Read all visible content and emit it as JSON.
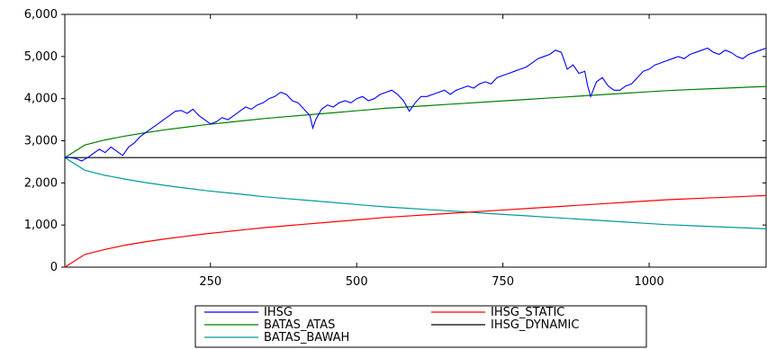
{
  "chart_data": {
    "type": "line",
    "title": "",
    "xlabel": "",
    "ylabel": "",
    "xlim": [
      1,
      1200
    ],
    "ylim": [
      0,
      6000
    ],
    "x_ticks": [
      250,
      500,
      750,
      1000
    ],
    "x_tick_labels": [
      "250",
      "500",
      "750",
      "1000"
    ],
    "y_ticks": [
      0,
      1000,
      2000,
      3000,
      4000,
      5000,
      6000
    ],
    "y_tick_labels": [
      "0",
      "1,000",
      "2,000",
      "3,000",
      "4,000",
      "5,000",
      "6,000"
    ],
    "grid": false,
    "legend_position": "bottom",
    "series": [
      {
        "name": "IHSG",
        "color": "#0000ff",
        "x": [
          1,
          10,
          20,
          30,
          40,
          50,
          60,
          70,
          80,
          90,
          100,
          110,
          120,
          130,
          140,
          150,
          160,
          170,
          180,
          190,
          200,
          210,
          220,
          230,
          240,
          250,
          260,
          270,
          280,
          290,
          300,
          310,
          320,
          330,
          340,
          350,
          360,
          370,
          380,
          390,
          400,
          410,
          420,
          425,
          430,
          440,
          450,
          460,
          470,
          480,
          490,
          500,
          510,
          520,
          530,
          540,
          550,
          560,
          570,
          580,
          590,
          600,
          610,
          620,
          630,
          640,
          650,
          660,
          670,
          680,
          690,
          700,
          710,
          720,
          730,
          740,
          750,
          760,
          770,
          780,
          790,
          800,
          810,
          820,
          830,
          840,
          850,
          860,
          870,
          880,
          890,
          895,
          900,
          910,
          920,
          930,
          940,
          950,
          960,
          970,
          980,
          990,
          1000,
          1010,
          1020,
          1030,
          1040,
          1050,
          1060,
          1070,
          1080,
          1090,
          1100,
          1110,
          1120,
          1130,
          1140,
          1150,
          1160,
          1170,
          1180,
          1190,
          1200
        ],
        "values": [
          2620,
          2600,
          2580,
          2520,
          2600,
          2700,
          2800,
          2720,
          2850,
          2750,
          2650,
          2850,
          2950,
          3100,
          3200,
          3300,
          3400,
          3500,
          3600,
          3700,
          3720,
          3650,
          3750,
          3600,
          3500,
          3400,
          3450,
          3550,
          3500,
          3600,
          3700,
          3800,
          3750,
          3850,
          3900,
          4000,
          4050,
          4150,
          4100,
          3950,
          3900,
          3750,
          3600,
          3300,
          3500,
          3750,
          3850,
          3800,
          3900,
          3950,
          3900,
          4000,
          4050,
          3950,
          4000,
          4100,
          4150,
          4200,
          4100,
          3950,
          3700,
          3900,
          4050,
          4050,
          4100,
          4150,
          4200,
          4100,
          4200,
          4250,
          4300,
          4250,
          4350,
          4400,
          4350,
          4500,
          4550,
          4600,
          4650,
          4700,
          4750,
          4850,
          4950,
          5000,
          5050,
          5150,
          5100,
          4700,
          4800,
          4600,
          4650,
          4300,
          4050,
          4400,
          4500,
          4300,
          4200,
          4200,
          4300,
          4350,
          4500,
          4650,
          4700,
          4800,
          4850,
          4900,
          4950,
          5000,
          4950,
          5050,
          5100,
          5150,
          5200,
          5100,
          5050,
          5150,
          5100,
          5000,
          4950,
          5050,
          5100,
          5150,
          5200
        ]
      },
      {
        "name": "IHSG_STATIC",
        "color": "#ff0000",
        "formula": "static_lower_1_to_1200",
        "x_step": 10,
        "values": [
          0,
          300,
          420,
          520,
          600,
          670,
          730,
          790,
          840,
          890,
          940,
          980,
          1020,
          1060,
          1100,
          1140,
          1180,
          1210,
          1240,
          1270,
          1300,
          1330,
          1360,
          1390,
          1420,
          1450,
          1480,
          1510,
          1540,
          1570,
          1600,
          1620,
          1640,
          1660,
          1680,
          1700
        ]
      },
      {
        "name": "BATAS_ATAS",
        "color": "#008000",
        "x_step": 10,
        "values": [
          2600,
          2900,
          3020,
          3110,
          3190,
          3260,
          3320,
          3380,
          3430,
          3480,
          3530,
          3570,
          3610,
          3650,
          3690,
          3730,
          3770,
          3800,
          3830,
          3860,
          3890,
          3920,
          3950,
          3980,
          4010,
          4040,
          4070,
          4100,
          4130,
          4160,
          4190,
          4210,
          4230,
          4250,
          4270,
          4290
        ]
      },
      {
        "name": "IHSG_DYNAMIC",
        "color": "#000000",
        "constant": 2600
      },
      {
        "name": "BATAS_BAWAH",
        "color": "#009a9a",
        "x_step": 10,
        "values": [
          2600,
          2300,
          2180,
          2090,
          2010,
          1940,
          1880,
          1820,
          1770,
          1720,
          1670,
          1630,
          1590,
          1550,
          1510,
          1470,
          1430,
          1400,
          1370,
          1340,
          1310,
          1280,
          1250,
          1220,
          1190,
          1160,
          1130,
          1100,
          1070,
          1040,
          1010,
          990,
          970,
          950,
          930,
          910
        ]
      }
    ]
  },
  "legend": {
    "entries": [
      {
        "name": "IHSG",
        "color": "#0000ff"
      },
      {
        "name": "IHSG_STATIC",
        "color": "#ff0000"
      },
      {
        "name": "BATAS_ATAS",
        "color": "#008000"
      },
      {
        "name": "IHSG_DYNAMIC",
        "color": "#000000"
      },
      {
        "name": "BATAS_BAWAH",
        "color": "#009a9a"
      }
    ]
  }
}
